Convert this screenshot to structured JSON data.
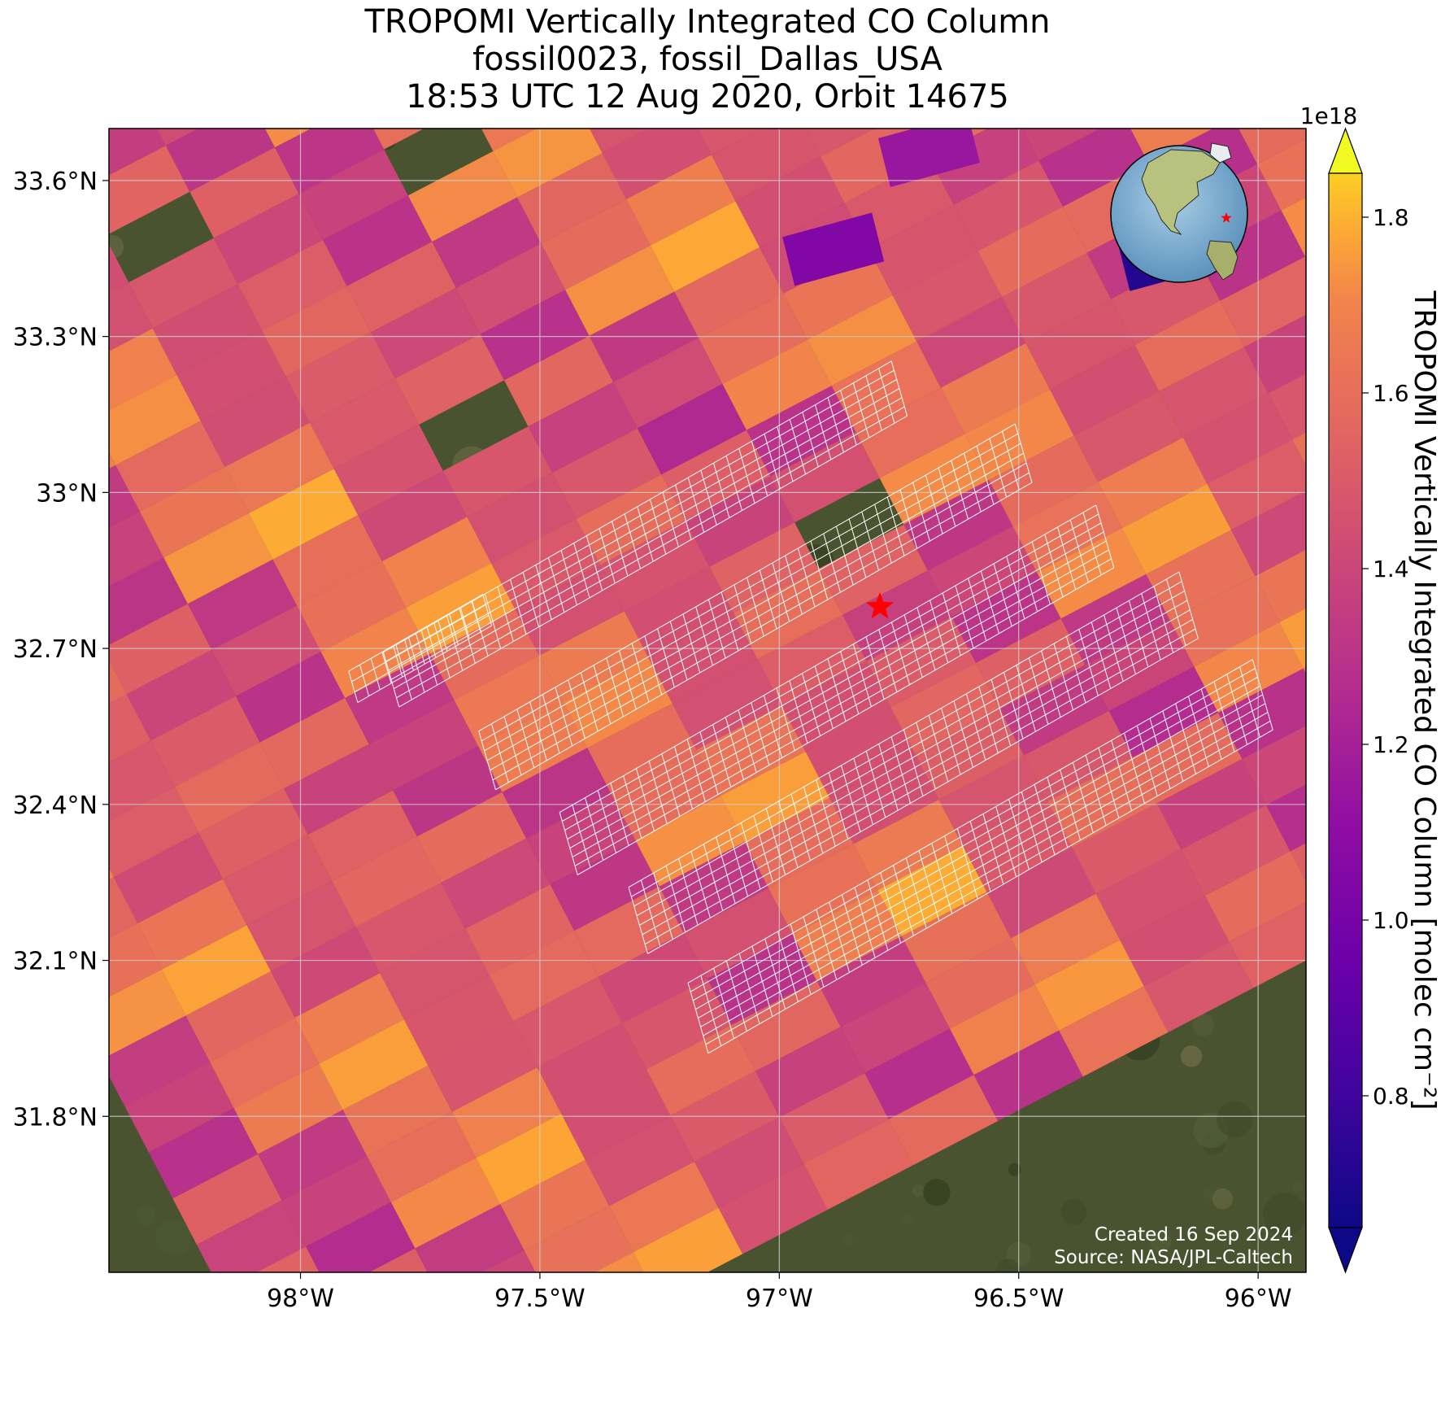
{
  "title": {
    "line1": "TROPOMI Vertically Integrated CO Column",
    "line2": "fossil0023, fossil_Dallas_USA",
    "line3": "18:53 UTC 12 Aug 2020, Orbit 14675"
  },
  "map": {
    "lon_range": [
      -98.4,
      -95.9
    ],
    "lat_range": [
      31.5,
      33.7
    ],
    "x_ticks": [
      {
        "value": -98.0,
        "label": "98°W"
      },
      {
        "value": -97.5,
        "label": "97.5°W"
      },
      {
        "value": -97.0,
        "label": "97°W"
      },
      {
        "value": -96.5,
        "label": "96.5°W"
      },
      {
        "value": -96.0,
        "label": "96°W"
      }
    ],
    "y_ticks": [
      {
        "value": 33.6,
        "label": "33.6°N"
      },
      {
        "value": 33.3,
        "label": "33.3°N"
      },
      {
        "value": 33.0,
        "label": "33°N"
      },
      {
        "value": 32.7,
        "label": "32.7°N"
      },
      {
        "value": 32.4,
        "label": "32.4°N"
      },
      {
        "value": 32.1,
        "label": "32.1°N"
      },
      {
        "value": 31.8,
        "label": "31.8°N"
      }
    ],
    "gridlines": true,
    "target_marker": {
      "symbol": "star",
      "lon": -96.79,
      "lat": 32.78,
      "color": "#ff0000"
    },
    "inset": {
      "type": "globe",
      "marker": "star",
      "marker_color": "#ff0000",
      "placement": "top-right"
    },
    "footer": {
      "created": "Created 16 Sep 2024",
      "source": "Source: NASA/JPL-Caltech"
    }
  },
  "colorbar": {
    "colormap": "plasma",
    "label": "TROPOMI Vertically Integrated CO Column [molec cm⁻²]",
    "multiplier": "1e18",
    "range": [
      0.65,
      1.85
    ],
    "extend": "both",
    "ticks": [
      {
        "value": 0.8,
        "label": "0.8"
      },
      {
        "value": 1.0,
        "label": "1.0"
      },
      {
        "value": 1.2,
        "label": "1.2"
      },
      {
        "value": 1.4,
        "label": "1.4"
      },
      {
        "value": 1.6,
        "label": "1.6"
      },
      {
        "value": 1.8,
        "label": "1.8"
      }
    ]
  },
  "chart_data": {
    "type": "heatmap",
    "title": "TROPOMI Vertically Integrated CO Column",
    "subtitle": "fossil0023, fossil_Dallas_USA / 18:53 UTC 12 Aug 2020, Orbit 14675",
    "xlabel": "",
    "ylabel": "",
    "xlim": [
      -98.4,
      -95.9
    ],
    "ylim": [
      31.5,
      33.7
    ],
    "value_units": "molec cm⁻² (×1e18)",
    "value_range": [
      0.65,
      1.85
    ],
    "sample_values": [
      1.55,
      1.62,
      1.48,
      1.38,
      1.7,
      1.45,
      1.52,
      1.32,
      1.66,
      1.58,
      1.42,
      1.75,
      1.5,
      1.28,
      1.6,
      1.46
    ],
    "low_values": [
      {
        "lon": -96.2,
        "lat": 33.45,
        "value": 0.72
      },
      {
        "lon": -96.9,
        "lat": 33.46,
        "value": 1.05
      },
      {
        "lon": -96.7,
        "lat": 33.65,
        "value": 1.15
      }
    ],
    "grid": true
  }
}
